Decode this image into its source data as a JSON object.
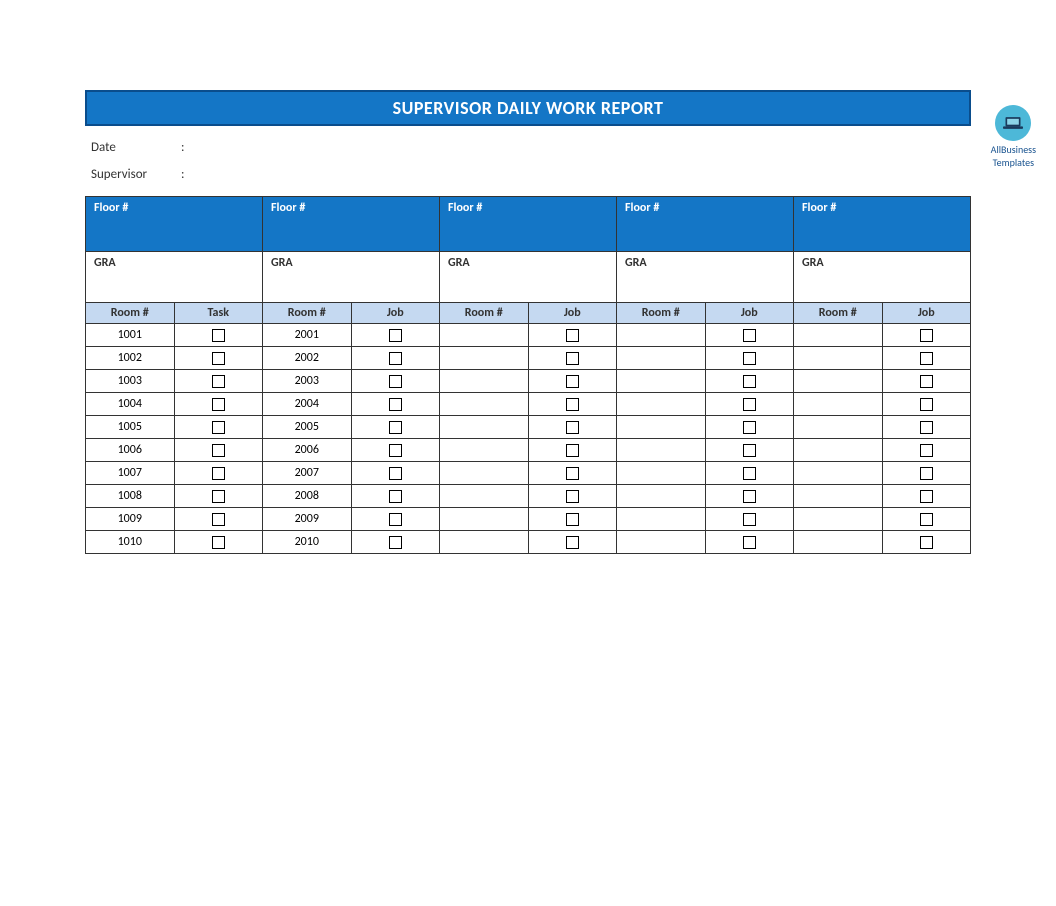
{
  "watermark": {
    "line1": "AllBusiness",
    "line2": "Templates"
  },
  "title": "SUPERVISOR DAILY WORK REPORT",
  "meta": {
    "date_label": "Date",
    "supervisor_label": "Supervisor",
    "date_value": "",
    "supervisor_value": ""
  },
  "colors": {
    "title_bg": "#1476c6",
    "title_border": "#0a4d8c",
    "header_sub_bg": "#c5d9f1",
    "border": "#333333"
  },
  "num_floor_columns": 5,
  "floor_header": "Floor #",
  "gra_label": "GRA",
  "sub_headers": {
    "room": "Room #",
    "task": "Task",
    "job": "Job"
  },
  "columns": [
    {
      "room_label": "Room #",
      "second_label": "Task",
      "rooms": [
        "1001",
        "1002",
        "1003",
        "1004",
        "1005",
        "1006",
        "1007",
        "1008",
        "1009",
        "1010"
      ]
    },
    {
      "room_label": "Room #",
      "second_label": "Job",
      "rooms": [
        "2001",
        "2002",
        "2003",
        "2004",
        "2005",
        "2006",
        "2007",
        "2008",
        "2009",
        "2010"
      ]
    },
    {
      "room_label": "Room #",
      "second_label": "Job",
      "rooms": [
        "",
        "",
        "",
        "",
        "",
        "",
        "",
        "",
        "",
        ""
      ]
    },
    {
      "room_label": "Room #",
      "second_label": "Job",
      "rooms": [
        "",
        "",
        "",
        "",
        "",
        "",
        "",
        "",
        "",
        ""
      ]
    },
    {
      "room_label": "Room #",
      "second_label": "Job",
      "rooms": [
        "",
        "",
        "",
        "",
        "",
        "",
        "",
        "",
        "",
        ""
      ]
    }
  ],
  "num_rows": 10
}
